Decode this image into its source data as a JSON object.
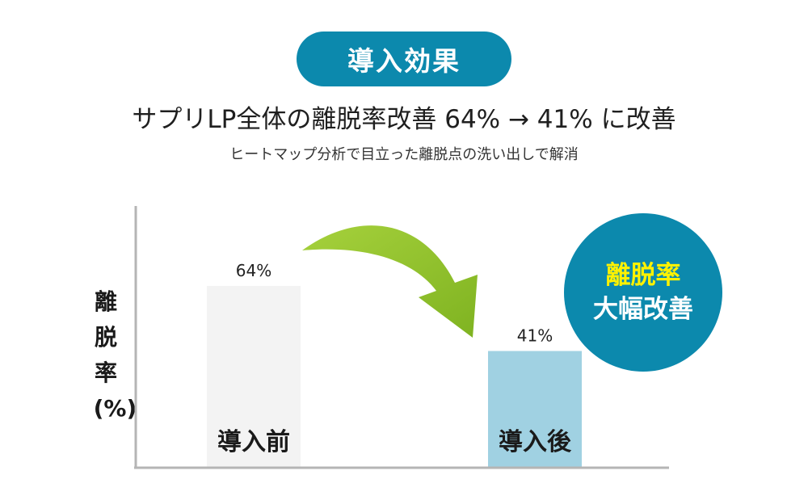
{
  "header": {
    "pill_label": "導入効果",
    "headline": "サプリLP全体の離脱率改善 64% → 41% に改善",
    "subline": "ヒートマップ分析で目立った離脱点の洗い出しで解消"
  },
  "badge": {
    "line1": "離脱率",
    "line2": "大幅改善"
  },
  "colors": {
    "accent": "#0c89ad",
    "badge_highlight": "#fff200",
    "before_bar": "#f3f3f3",
    "after_bar": "#a0d1e2",
    "arrow": "#8cbf26",
    "axis": "#b5b5b5"
  },
  "chart_data": {
    "type": "bar",
    "ylabel": "離脱率(%)",
    "categories": [
      "導入前",
      "導入後"
    ],
    "values": [
      64,
      41
    ],
    "data_labels": [
      "64%",
      "41%"
    ],
    "ylim": [
      0,
      100
    ],
    "grid": false,
    "annotation": "curved arrow from 導入前 to 導入後"
  }
}
